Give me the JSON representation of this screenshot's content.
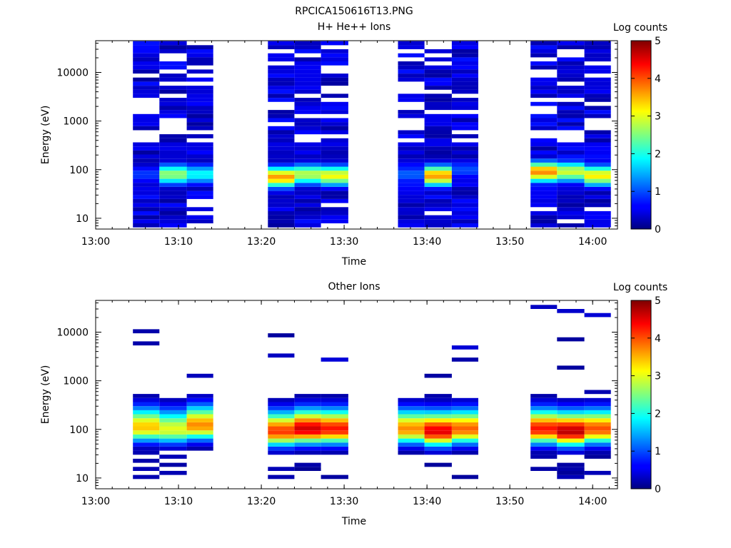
{
  "figure_title": "RPCICA150616T13.PNG",
  "chart_data": [
    {
      "type": "heatmap",
      "title": "H+ He++ Ions",
      "xlabel": "Time",
      "ylabel": "Energy (eV)",
      "x_ticks": [
        "13:00",
        "13:10",
        "13:20",
        "13:30",
        "13:40",
        "13:50",
        "14:00"
      ],
      "x_range": [
        "13:00",
        "14:03"
      ],
      "y_scale": "log",
      "y_ticks": [
        10,
        100,
        1000,
        10000
      ],
      "y_range": [
        6,
        45000
      ],
      "colorbar": {
        "label": "Log counts",
        "range": [
          0,
          5
        ],
        "ticks": [
          0,
          1,
          2,
          3,
          4,
          5
        ],
        "colormap": "jet"
      },
      "grid": false,
      "columns": [
        {
          "start": "13:04.5",
          "end": "13:07.7",
          "peak_energy_eV": 80,
          "peak_log_counts": 0.9
        },
        {
          "start": "13:07.7",
          "end": "13:11.0",
          "peak_energy_eV": 80,
          "peak_log_counts": 2.6
        },
        {
          "start": "13:11.0",
          "end": "13:14.2",
          "peak_energy_eV": 80,
          "peak_log_counts": 1.9
        },
        {
          "start": "13:20.8",
          "end": "13:24.0",
          "peak_energy_eV": 70,
          "peak_log_counts": 3.6
        },
        {
          "start": "13:24.0",
          "end": "13:27.2",
          "peak_energy_eV": 80,
          "peak_log_counts": 2.8
        },
        {
          "start": "13:27.2",
          "end": "13:30.5",
          "peak_energy_eV": 75,
          "peak_log_counts": 3.1
        },
        {
          "start": "13:36.5",
          "end": "13:39.7",
          "peak_energy_eV": 80,
          "peak_log_counts": 1.1
        },
        {
          "start": "13:39.7",
          "end": "13:43.0",
          "peak_energy_eV": 75,
          "peak_log_counts": 3.6
        },
        {
          "start": "13:43.0",
          "end": "13:46.2",
          "peak_energy_eV": 100,
          "peak_log_counts": 1.0
        },
        {
          "start": "13:52.5",
          "end": "13:55.7",
          "peak_energy_eV": 90,
          "peak_log_counts": 3.7
        },
        {
          "start": "13:55.7",
          "end": "13:59.0",
          "peak_energy_eV": 90,
          "peak_log_counts": 2.9
        },
        {
          "start": "13:59.0",
          "end": "14:02.2",
          "peak_energy_eV": 75,
          "peak_log_counts": 3.2
        }
      ]
    },
    {
      "type": "heatmap",
      "title": "Other Ions",
      "xlabel": "Time",
      "ylabel": "Energy (eV)",
      "x_ticks": [
        "13:00",
        "13:10",
        "13:20",
        "13:30",
        "13:40",
        "13:50",
        "14:00"
      ],
      "x_range": [
        "13:00",
        "14:03"
      ],
      "y_scale": "log",
      "y_ticks": [
        10,
        100,
        1000,
        10000
      ],
      "y_range": [
        6,
        45000
      ],
      "colorbar": {
        "label": "Log counts",
        "range": [
          0,
          5
        ],
        "ticks": [
          0,
          1,
          2,
          3,
          4,
          5
        ],
        "colormap": "jet"
      },
      "grid": false,
      "columns": [
        {
          "start": "13:04.5",
          "end": "13:07.7",
          "peak_energy_eV": 110,
          "peak_log_counts": 3.4
        },
        {
          "start": "13:07.7",
          "end": "13:11.0",
          "peak_energy_eV": 100,
          "peak_log_counts": 3.0
        },
        {
          "start": "13:11.0",
          "end": "13:14.2",
          "peak_energy_eV": 120,
          "peak_log_counts": 3.7
        },
        {
          "start": "13:20.8",
          "end": "13:24.0",
          "peak_energy_eV": 90,
          "peak_log_counts": 4.1
        },
        {
          "start": "13:24.0",
          "end": "13:27.2",
          "peak_energy_eV": 100,
          "peak_log_counts": 4.6
        },
        {
          "start": "13:27.2",
          "end": "13:30.5",
          "peak_energy_eV": 100,
          "peak_log_counts": 4.3
        },
        {
          "start": "13:36.5",
          "end": "13:39.7",
          "peak_energy_eV": 100,
          "peak_log_counts": 3.7
        },
        {
          "start": "13:39.7",
          "end": "13:43.0",
          "peak_energy_eV": 90,
          "peak_log_counts": 4.5
        },
        {
          "start": "13:43.0",
          "end": "13:46.2",
          "peak_energy_eV": 100,
          "peak_log_counts": 3.9
        },
        {
          "start": "13:52.5",
          "end": "13:55.7",
          "peak_energy_eV": 100,
          "peak_log_counts": 4.3
        },
        {
          "start": "13:55.7",
          "end": "13:59.0",
          "peak_energy_eV": 90,
          "peak_log_counts": 4.7
        },
        {
          "start": "13:59.0",
          "end": "14:02.2",
          "peak_energy_eV": 100,
          "peak_log_counts": 4.0
        }
      ]
    }
  ]
}
